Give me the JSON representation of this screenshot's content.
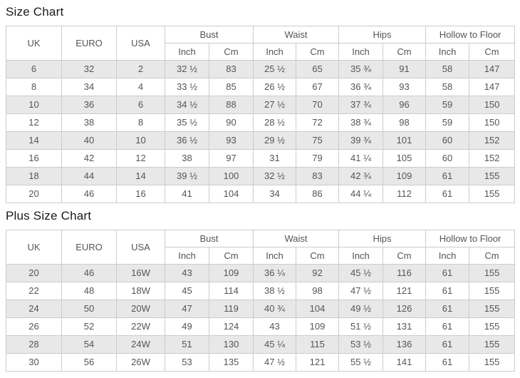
{
  "columns": {
    "plain": [
      "UK",
      "EURO",
      "USA"
    ],
    "groups": [
      "Bust",
      "Waist",
      "Hips",
      "Hollow to Floor"
    ],
    "units": [
      "Inch",
      "Cm"
    ]
  },
  "size_chart": {
    "title": "Size Chart",
    "rows": [
      [
        "6",
        "32",
        "2",
        "32 ½",
        "83",
        "25 ½",
        "65",
        "35 ¾",
        "91",
        "58",
        "147"
      ],
      [
        "8",
        "34",
        "4",
        "33 ½",
        "85",
        "26 ½",
        "67",
        "36 ¾",
        "93",
        "58",
        "147"
      ],
      [
        "10",
        "36",
        "6",
        "34 ½",
        "88",
        "27 ½",
        "70",
        "37 ¾",
        "96",
        "59",
        "150"
      ],
      [
        "12",
        "38",
        "8",
        "35 ½",
        "90",
        "28 ½",
        "72",
        "38 ¾",
        "98",
        "59",
        "150"
      ],
      [
        "14",
        "40",
        "10",
        "36 ½",
        "93",
        "29 ½",
        "75",
        "39 ¾",
        "101",
        "60",
        "152"
      ],
      [
        "16",
        "42",
        "12",
        "38",
        "97",
        "31",
        "79",
        "41 ¼",
        "105",
        "60",
        "152"
      ],
      [
        "18",
        "44",
        "14",
        "39 ½",
        "100",
        "32 ½",
        "83",
        "42 ¾",
        "109",
        "61",
        "155"
      ],
      [
        "20",
        "46",
        "16",
        "41",
        "104",
        "34",
        "86",
        "44 ¼",
        "112",
        "61",
        "155"
      ]
    ]
  },
  "plus_size_chart": {
    "title": "Plus Size Chart",
    "rows": [
      [
        "20",
        "46",
        "16W",
        "43",
        "109",
        "36 ¼",
        "92",
        "45 ½",
        "116",
        "61",
        "155"
      ],
      [
        "22",
        "48",
        "18W",
        "45",
        "114",
        "38 ½",
        "98",
        "47 ½",
        "121",
        "61",
        "155"
      ],
      [
        "24",
        "50",
        "20W",
        "47",
        "119",
        "40 ¾",
        "104",
        "49 ½",
        "126",
        "61",
        "155"
      ],
      [
        "26",
        "52",
        "22W",
        "49",
        "124",
        "43",
        "109",
        "51 ½",
        "131",
        "61",
        "155"
      ],
      [
        "28",
        "54",
        "24W",
        "51",
        "130",
        "45 ¼",
        "115",
        "53 ½",
        "136",
        "61",
        "155"
      ],
      [
        "30",
        "56",
        "26W",
        "53",
        "135",
        "47 ½",
        "121",
        "55 ½",
        "141",
        "61",
        "155"
      ]
    ]
  },
  "colors": {
    "border": "#cccccc",
    "stripe": "#e8e8e8",
    "cell_text": "#555555",
    "title_text": "#1a1a1a",
    "background": "#ffffff"
  }
}
